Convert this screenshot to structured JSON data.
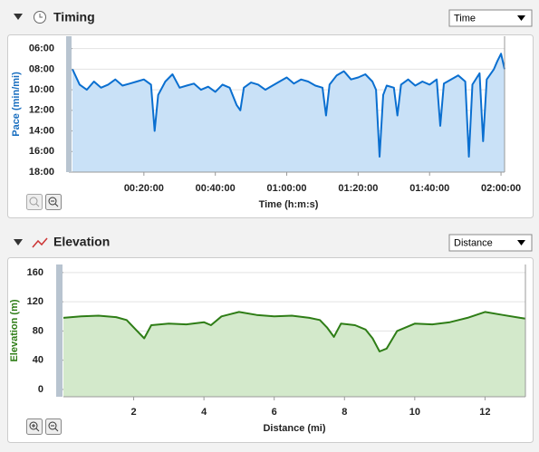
{
  "panels": [
    {
      "title": "Timing",
      "select": "Time"
    },
    {
      "title": "Elevation",
      "select": "Distance"
    }
  ],
  "chart_data": [
    {
      "type": "area",
      "ylabel": "Pace (min/mi)",
      "xlabel": "Time (h:m:s)",
      "color": "#0a6fd0",
      "fill_color": "#c9e1f7",
      "axis_color": "#1a6fc0",
      "x": [
        0,
        2,
        4,
        6,
        8,
        10,
        12,
        14,
        16,
        18,
        20,
        22,
        23,
        24,
        26,
        28,
        30,
        32,
        34,
        36,
        38,
        40,
        42,
        44,
        46,
        47,
        48,
        50,
        52,
        54,
        56,
        58,
        60,
        62,
        64,
        66,
        68,
        70,
        71,
        72,
        74,
        76,
        78,
        80,
        82,
        84,
        85,
        86,
        87,
        88,
        90,
        91,
        92,
        94,
        96,
        98,
        100,
        102,
        103,
        104,
        106,
        108,
        110,
        111,
        112,
        114,
        115,
        116,
        118,
        119,
        120,
        121
      ],
      "values": [
        8.0,
        9.5,
        10.0,
        9.2,
        9.8,
        9.5,
        9.0,
        9.6,
        9.4,
        9.2,
        9.0,
        9.5,
        14.0,
        10.5,
        9.2,
        8.5,
        9.8,
        9.6,
        9.4,
        10.0,
        9.7,
        10.2,
        9.5,
        9.8,
        11.5,
        12.0,
        9.8,
        9.3,
        9.5,
        10.0,
        9.6,
        9.2,
        8.8,
        9.4,
        9.0,
        9.2,
        9.6,
        9.8,
        12.5,
        9.5,
        8.6,
        8.2,
        9.0,
        8.8,
        8.5,
        9.2,
        10.0,
        16.5,
        10.5,
        9.6,
        9.8,
        12.5,
        9.5,
        9.0,
        9.6,
        9.2,
        9.5,
        9.0,
        13.5,
        9.4,
        9.0,
        8.6,
        9.2,
        16.5,
        9.5,
        8.4,
        15.0,
        9.0,
        8.0,
        7.2,
        6.5,
        8.0
      ],
      "xlim": [
        0,
        121
      ],
      "ylim": [
        18,
        4.8
      ],
      "xticks": [
        {
          "value": 20,
          "label": "00:20:00"
        },
        {
          "value": 40,
          "label": "00:40:00"
        },
        {
          "value": 60,
          "label": "01:00:00"
        },
        {
          "value": 80,
          "label": "01:20:00"
        },
        {
          "value": 100,
          "label": "01:40:00"
        },
        {
          "value": 120,
          "label": "02:00:00"
        }
      ],
      "yticks": [
        {
          "value": 6,
          "label": "06:00"
        },
        {
          "value": 8,
          "label": "08:00"
        },
        {
          "value": 10,
          "label": "10:00"
        },
        {
          "value": 12,
          "label": "12:00"
        },
        {
          "value": 14,
          "label": "14:00"
        },
        {
          "value": 16,
          "label": "16:00"
        },
        {
          "value": 18,
          "label": "18:00"
        }
      ],
      "grid": true
    },
    {
      "type": "area",
      "ylabel": "Elevation (m)",
      "xlabel": "Distance (mi)",
      "color": "#2e7d16",
      "fill_color": "#d3e9cb",
      "axis_color": "#2e7d16",
      "x": [
        0,
        0.5,
        1,
        1.5,
        1.8,
        2.1,
        2.3,
        2.5,
        3,
        3.5,
        4,
        4.2,
        4.5,
        5,
        5.5,
        6,
        6.5,
        7,
        7.3,
        7.5,
        7.7,
        7.9,
        8.3,
        8.6,
        8.8,
        9,
        9.2,
        9.5,
        10,
        10.5,
        11,
        11.5,
        12,
        12.5,
        13,
        13.15
      ],
      "values": [
        98,
        100,
        101,
        99,
        95,
        80,
        70,
        88,
        90,
        89,
        92,
        88,
        100,
        106,
        102,
        100,
        101,
        98,
        95,
        85,
        72,
        90,
        88,
        82,
        70,
        52,
        56,
        80,
        90,
        89,
        92,
        98,
        106,
        102,
        98,
        97
      ],
      "xlim": [
        0,
        13.15
      ],
      "ylim": [
        -10,
        171
      ],
      "xticks": [
        2,
        4,
        6,
        8,
        10,
        12
      ],
      "yticks": [
        0,
        40,
        80,
        120,
        160
      ],
      "grid": true
    }
  ]
}
